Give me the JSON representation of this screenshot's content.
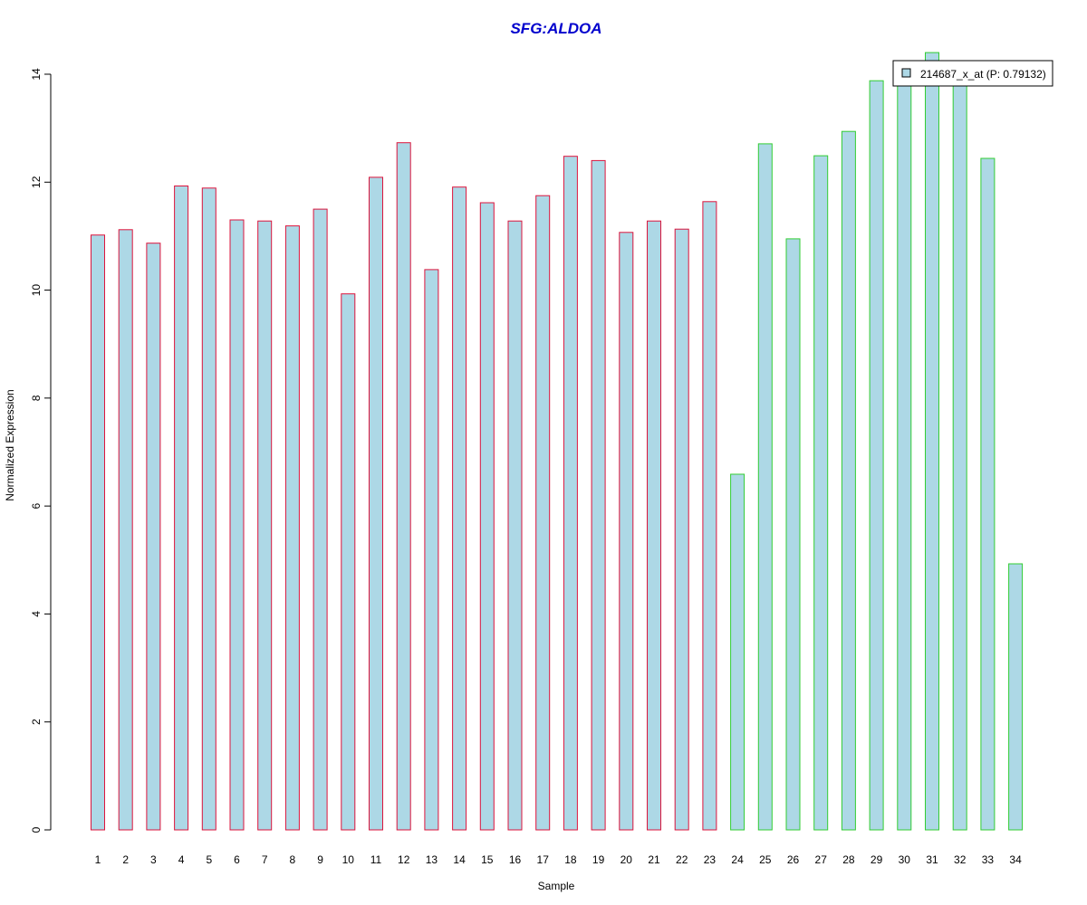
{
  "chart_data": {
    "type": "bar",
    "title": "SFG:ALDOA",
    "xlabel": "Sample",
    "ylabel": "Normalized Expression",
    "ylim": [
      0,
      14
    ],
    "yticks": [
      0,
      2,
      4,
      6,
      8,
      10,
      12,
      14
    ],
    "grid": false,
    "legend_position": "top-right",
    "legend_entries": [
      "214687_x_at (P: 0.79132)"
    ],
    "categories": [
      "1",
      "2",
      "3",
      "4",
      "5",
      "6",
      "7",
      "8",
      "9",
      "10",
      "11",
      "12",
      "13",
      "14",
      "15",
      "16",
      "17",
      "18",
      "19",
      "20",
      "21",
      "22",
      "23",
      "24",
      "25",
      "26",
      "27",
      "28",
      "29",
      "30",
      "31",
      "32",
      "33",
      "34"
    ],
    "series": [
      {
        "name": "214687_x_at (P: 0.79132)",
        "values": [
          11.02,
          11.12,
          10.87,
          11.93,
          11.89,
          11.3,
          11.28,
          11.19,
          11.5,
          9.93,
          12.09,
          12.73,
          10.38,
          11.91,
          11.62,
          11.28,
          11.75,
          12.48,
          12.4,
          11.07,
          11.28,
          11.13,
          11.64,
          6.59,
          12.71,
          10.95,
          12.49,
          12.94,
          13.88,
          14.0,
          14.4,
          14.0,
          12.44,
          4.93
        ],
        "groups": [
          "red",
          "red",
          "red",
          "red",
          "red",
          "red",
          "red",
          "red",
          "red",
          "red",
          "red",
          "red",
          "red",
          "red",
          "red",
          "red",
          "red",
          "red",
          "red",
          "red",
          "red",
          "red",
          "red",
          "green",
          "green",
          "green",
          "green",
          "green",
          "green",
          "green",
          "green",
          "green",
          "green",
          "green"
        ]
      }
    ],
    "colors": {
      "bar_fill": "#add8e6",
      "border_red": "#dc143c",
      "border_green": "#32cd32",
      "title": "#0000cd",
      "axis": "#000000"
    }
  }
}
